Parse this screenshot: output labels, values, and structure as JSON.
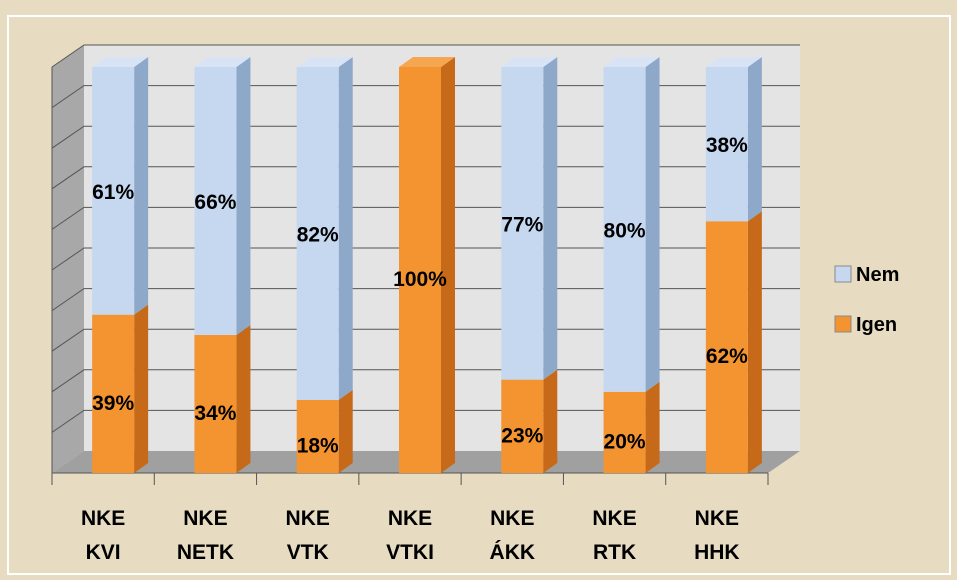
{
  "chart_data": {
    "type": "bar",
    "stacked": true,
    "percent_stacked": true,
    "categories": [
      [
        "NKE",
        "KVI"
      ],
      [
        "NKE",
        "NETK"
      ],
      [
        "NKE",
        "VTK"
      ],
      [
        "NKE",
        "VTKI"
      ],
      [
        "NKE",
        "ÁKK"
      ],
      [
        "NKE",
        "RTK"
      ],
      [
        "NKE",
        "HHK"
      ]
    ],
    "series": [
      {
        "name": "Igen",
        "values": [
          39,
          34,
          18,
          100,
          23,
          20,
          62
        ],
        "labels": [
          "39%",
          "34%",
          "18%",
          "100%",
          "23%",
          "20%",
          "62%"
        ],
        "color": "#f39431",
        "side_color": "#c66a1a",
        "top_color": "#f7a650"
      },
      {
        "name": "Nem",
        "values": [
          61,
          66,
          82,
          0,
          77,
          80,
          38
        ],
        "labels": [
          "61%",
          "66%",
          "82%",
          "",
          "77%",
          "80%",
          "38%"
        ],
        "color": "#c6d8f0",
        "side_color": "#8da8c8",
        "top_color": "#d8e4f5"
      }
    ],
    "ylim": [
      0,
      100
    ],
    "legend": {
      "position": "right",
      "order": [
        "Nem",
        "Igen"
      ]
    },
    "grid": true,
    "three_d": true,
    "title": "",
    "xlabel": "",
    "ylabel": ""
  },
  "colors": {
    "background": "#e7dcc2",
    "frame": "#ffffff",
    "plot_back": "#e4e4e4",
    "plot_side": "#a8a8a8",
    "floor": "#a0a0a0",
    "grid": "#555555"
  }
}
